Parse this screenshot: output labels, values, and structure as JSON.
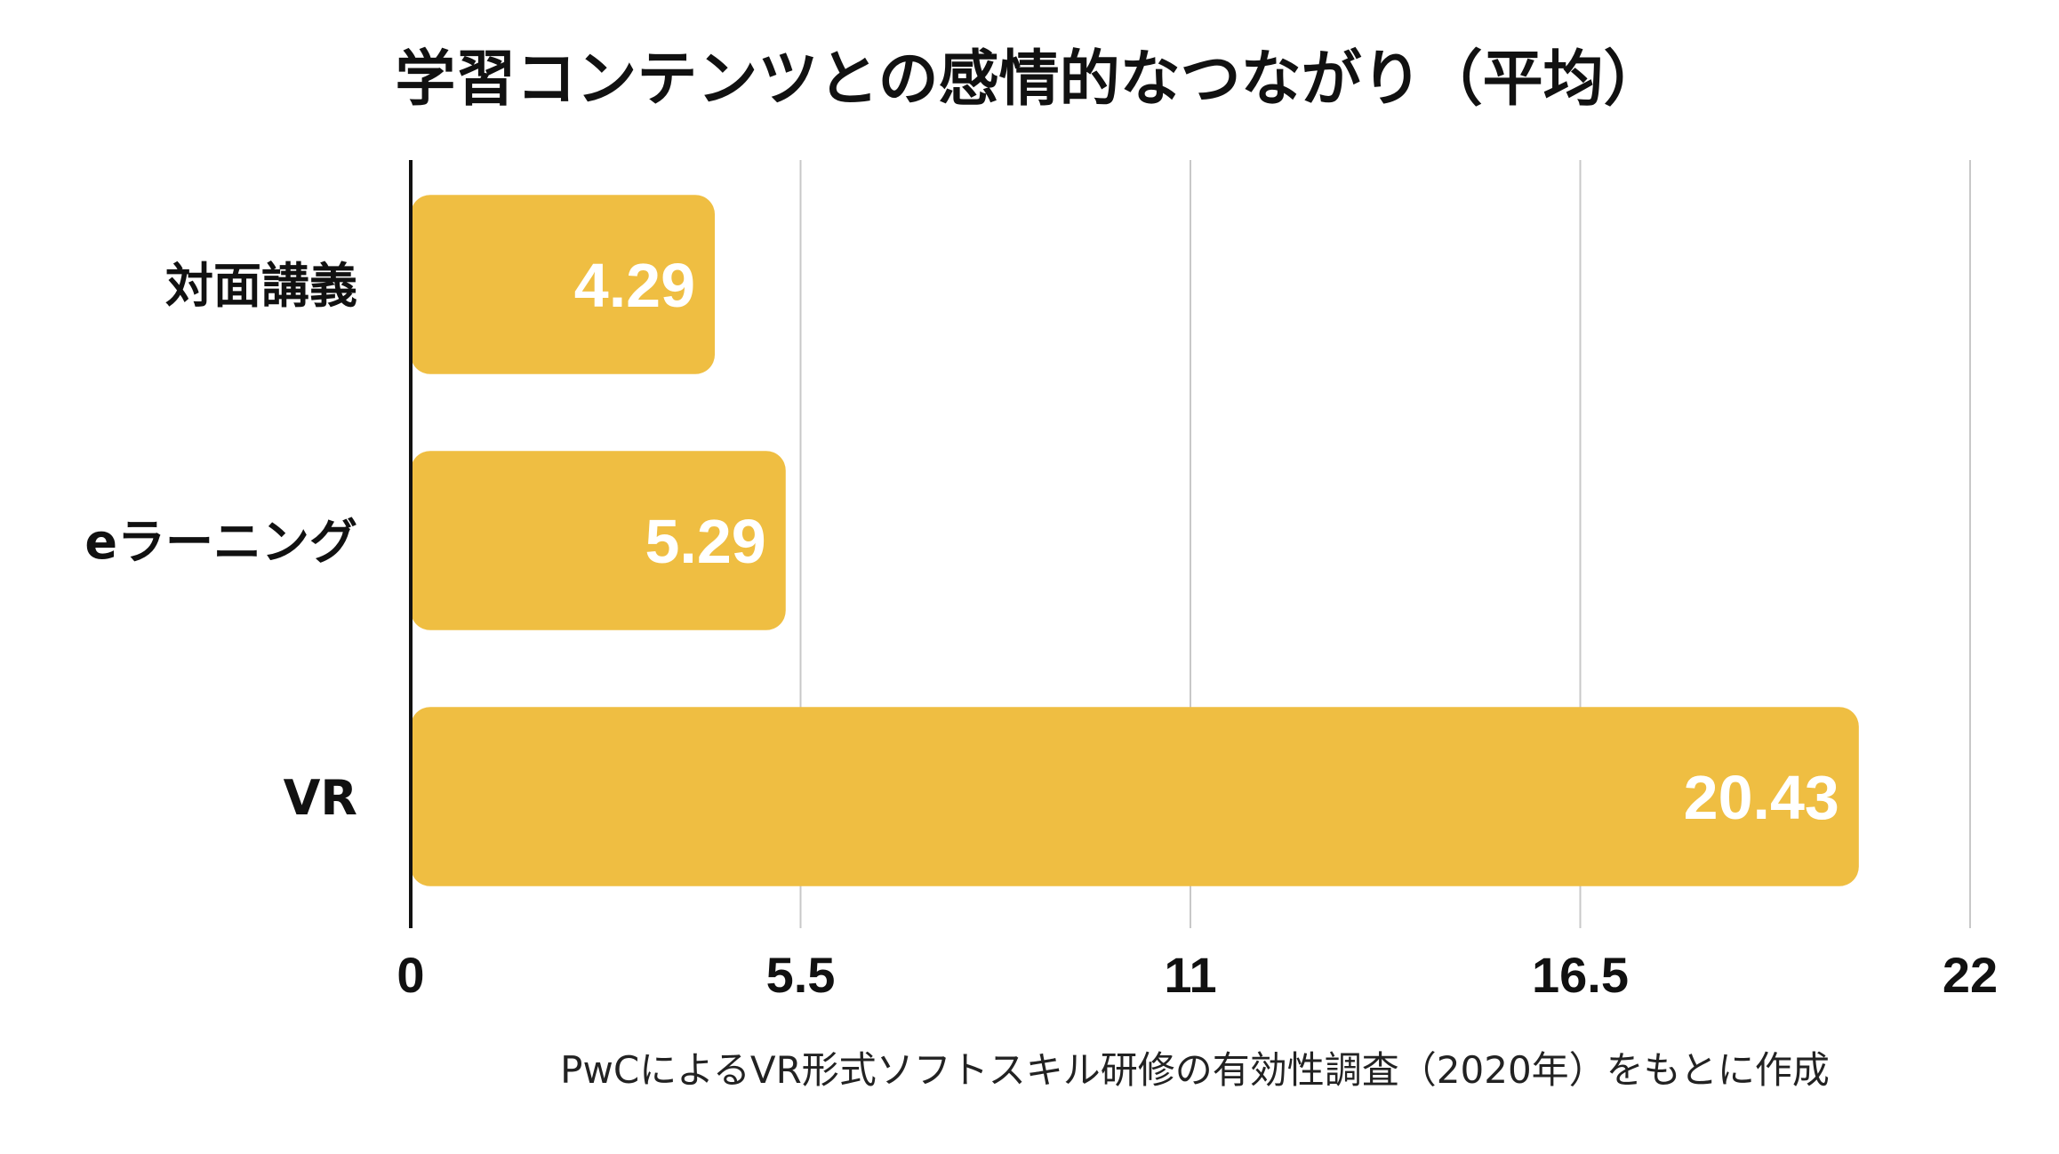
{
  "chart_data": {
    "type": "bar",
    "orientation": "horizontal",
    "title": "学習コンテンツとの感情的なつながり（平均）",
    "categories": [
      "対面講義",
      "eラーニング",
      "VR"
    ],
    "values": [
      4.29,
      5.29,
      20.43
    ],
    "value_labels": [
      "4.29",
      "5.29",
      "20.43"
    ],
    "xlim": [
      0,
      22
    ],
    "xticks": [
      0,
      5.5,
      11,
      16.5,
      22
    ],
    "xtick_labels": [
      "0",
      "5.5",
      "11",
      "16.5",
      "22"
    ],
    "xlabel": "",
    "ylabel": "",
    "grid": "vertical",
    "legend": "none",
    "bar_color": "#EFBE42",
    "value_label_color": "#FFFFFF",
    "source": "PwCによるVR形式ソフトスキル研修の有効性調査（2020年）をもとに作成"
  }
}
